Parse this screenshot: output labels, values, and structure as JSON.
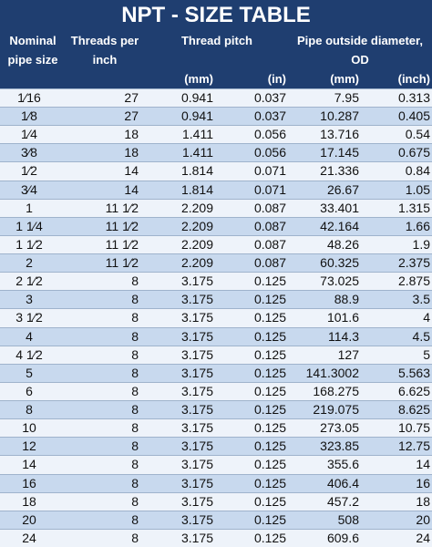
{
  "header": {
    "title": "NPT - SIZE TABLE",
    "columns": [
      "Nominal pipe size",
      "Threads per inch",
      "Thread pitch",
      "Pipe outside diameter, OD"
    ],
    "units": [
      "(mm)",
      "(in)",
      "(mm)",
      "(inch)"
    ]
  },
  "table": {
    "rows": [
      [
        "1⁄16",
        "27",
        "0.941",
        "0.037",
        "7.95",
        "0.313"
      ],
      [
        "1⁄8",
        "27",
        "0.941",
        "0.037",
        "10.287",
        "0.405"
      ],
      [
        "1⁄4",
        "18",
        "1.411",
        "0.056",
        "13.716",
        "0.54"
      ],
      [
        "3⁄8",
        "18",
        "1.411",
        "0.056",
        "17.145",
        "0.675"
      ],
      [
        "1⁄2",
        "14",
        "1.814",
        "0.071",
        "21.336",
        "0.84"
      ],
      [
        "3⁄4",
        "14",
        "1.814",
        "0.071",
        "26.67",
        "1.05"
      ],
      [
        "1",
        "11 1⁄2",
        "2.209",
        "0.087",
        "33.401",
        "1.315"
      ],
      [
        "1 1⁄4",
        "11 1⁄2",
        "2.209",
        "0.087",
        "42.164",
        "1.66"
      ],
      [
        "1 1⁄2",
        "11 1⁄2",
        "2.209",
        "0.087",
        "48.26",
        "1.9"
      ],
      [
        "2",
        "11 1⁄2",
        "2.209",
        "0.087",
        "60.325",
        "2.375"
      ],
      [
        "2 1⁄2",
        "8",
        "3.175",
        "0.125",
        "73.025",
        "2.875"
      ],
      [
        "3",
        "8",
        "3.175",
        "0.125",
        "88.9",
        "3.5"
      ],
      [
        "3 1⁄2",
        "8",
        "3.175",
        "0.125",
        "101.6",
        "4"
      ],
      [
        "4",
        "8",
        "3.175",
        "0.125",
        "114.3",
        "4.5"
      ],
      [
        "4 1⁄2",
        "8",
        "3.175",
        "0.125",
        "127",
        "5"
      ],
      [
        "5",
        "8",
        "3.175",
        "0.125",
        "141.3002",
        "5.563"
      ],
      [
        "6",
        "8",
        "3.175",
        "0.125",
        "168.275",
        "6.625"
      ],
      [
        "8",
        "8",
        "3.175",
        "0.125",
        "219.075",
        "8.625"
      ],
      [
        "10",
        "8",
        "3.175",
        "0.125",
        "273.05",
        "10.75"
      ],
      [
        "12",
        "8",
        "3.175",
        "0.125",
        "323.85",
        "12.75"
      ],
      [
        "14",
        "8",
        "3.175",
        "0.125",
        "355.6",
        "14"
      ],
      [
        "16",
        "8",
        "3.175",
        "0.125",
        "406.4",
        "16"
      ],
      [
        "18",
        "8",
        "3.175",
        "0.125",
        "457.2",
        "18"
      ],
      [
        "20",
        "8",
        "3.175",
        "0.125",
        "508",
        "20"
      ],
      [
        "24",
        "8",
        "3.175",
        "0.125",
        "609.6",
        "24"
      ]
    ]
  }
}
